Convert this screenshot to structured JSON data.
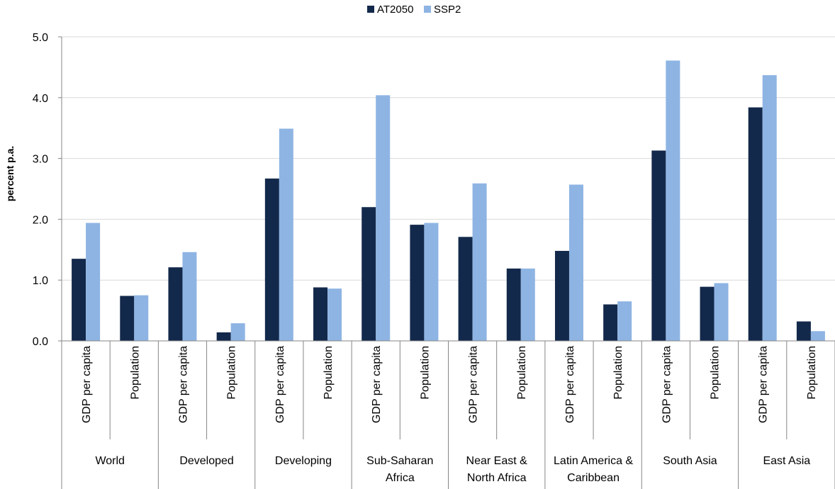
{
  "chart_data": {
    "type": "bar",
    "title": "",
    "xlabel": "",
    "ylabel": "percent p.a.",
    "ylim": [
      0,
      5
    ],
    "yticks": [
      "0.0",
      "1.0",
      "2.0",
      "3.0",
      "4.0",
      "5.0"
    ],
    "grid": true,
    "legend_position": "top",
    "colors": {
      "AT2050": "#13294b",
      "SSP2": "#8eb4e3",
      "grid": "#d9d9d9",
      "axis": "#868686"
    },
    "groups": [
      {
        "name_lines": [
          "World"
        ],
        "categories": [
          "GDP per capita",
          "Population"
        ]
      },
      {
        "name_lines": [
          "Developed"
        ],
        "categories": [
          "GDP per capita",
          "Population"
        ]
      },
      {
        "name_lines": [
          "Developing"
        ],
        "categories": [
          "GDP per capita",
          "Population"
        ]
      },
      {
        "name_lines": [
          "Sub-Saharan",
          "Africa"
        ],
        "categories": [
          "GDP per capita",
          "Population"
        ]
      },
      {
        "name_lines": [
          "Near East &",
          "North Africa"
        ],
        "categories": [
          "GDP per capita",
          "Population"
        ]
      },
      {
        "name_lines": [
          "Latin America &",
          "Caribbean"
        ],
        "categories": [
          "GDP per capita",
          "Population"
        ]
      },
      {
        "name_lines": [
          "South Asia"
        ],
        "categories": [
          "GDP per capita",
          "Population"
        ]
      },
      {
        "name_lines": [
          "East Asia"
        ],
        "categories": [
          "GDP per capita",
          "Population"
        ]
      }
    ],
    "series": [
      {
        "name": "AT2050",
        "values": [
          1.35,
          0.74,
          1.21,
          0.14,
          2.67,
          0.88,
          2.2,
          1.91,
          1.71,
          1.19,
          1.48,
          0.6,
          3.13,
          0.89,
          3.84,
          0.32
        ]
      },
      {
        "name": "SSP2",
        "values": [
          1.94,
          0.75,
          1.46,
          0.29,
          3.49,
          0.86,
          4.04,
          1.94,
          2.59,
          1.19,
          2.57,
          0.65,
          4.61,
          0.95,
          4.37,
          0.16
        ]
      }
    ]
  }
}
